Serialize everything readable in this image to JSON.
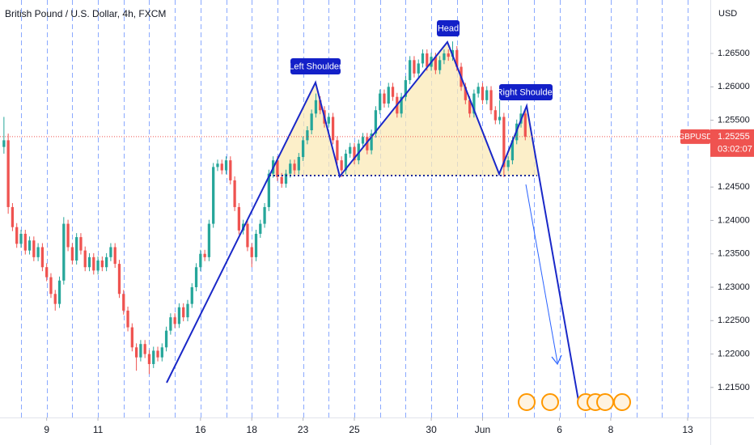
{
  "chart_data": {
    "type": "candlestick",
    "title": "British Pound / U.S. Dollar, 4h, FXCM",
    "currency": "USD",
    "up_color": "#26a69a",
    "down_color": "#ef5350",
    "xlim": [
      -4.92,
      161.3
    ],
    "ylim": [
      1.2105,
      1.273
    ],
    "xticks": [
      {
        "value": 6,
        "label": "9"
      },
      {
        "value": 18,
        "label": "11"
      },
      {
        "value": 42,
        "label": "16"
      },
      {
        "value": 54,
        "label": "18"
      },
      {
        "value": 66,
        "label": "23"
      },
      {
        "value": 78,
        "label": "25"
      },
      {
        "value": 96,
        "label": "30"
      },
      {
        "value": 108,
        "label": "Jun"
      },
      {
        "value": 126,
        "label": "6"
      },
      {
        "value": 138,
        "label": "8"
      },
      {
        "value": 156,
        "label": "13"
      }
    ],
    "xgrid": [
      0,
      6,
      12,
      18,
      24,
      30,
      36,
      42,
      48,
      54,
      60,
      66,
      72,
      78,
      84,
      90,
      96,
      102,
      108,
      114,
      120,
      126,
      132,
      138,
      144,
      150,
      156
    ],
    "yticks": [
      {
        "value": 1.215,
        "label": "1.21500"
      },
      {
        "value": 1.22,
        "label": "1.22000"
      },
      {
        "value": 1.225,
        "label": "1.22500"
      },
      {
        "value": 1.23,
        "label": "1.23000"
      },
      {
        "value": 1.235,
        "label": "1.23500"
      },
      {
        "value": 1.24,
        "label": "1.24000"
      },
      {
        "value": 1.245,
        "label": "1.24500"
      },
      {
        "value": 1.25,
        "label": "1.25000"
      },
      {
        "value": 1.255,
        "label": "1.25500"
      },
      {
        "value": 1.26,
        "label": "1.26000"
      },
      {
        "value": 1.265,
        "label": "1.26500"
      }
    ],
    "last_price": {
      "symbol": "GBPUSD",
      "value": 1.25255,
      "countdown": "03:02:07",
      "color": "#ef5350"
    },
    "annotations": [
      "Left Shoulder",
      "Head",
      "Right Shoulder"
    ],
    "x": [
      -4,
      -3,
      -2,
      -1,
      0,
      1,
      2,
      3,
      4,
      5,
      6,
      7,
      8,
      9,
      10,
      11,
      12,
      13,
      14,
      15,
      16,
      17,
      18,
      19,
      20,
      21,
      22,
      23,
      24,
      25,
      26,
      27,
      28,
      29,
      30,
      31,
      32,
      33,
      34,
      35,
      36,
      37,
      38,
      39,
      40,
      41,
      42,
      43,
      44,
      45,
      46,
      47,
      48,
      49,
      50,
      51,
      52,
      53,
      54,
      55,
      56,
      57,
      58,
      59,
      60,
      61,
      62,
      63,
      64,
      65,
      66,
      67,
      68,
      69,
      70,
      71,
      72,
      73,
      74,
      75,
      76,
      77,
      78,
      79,
      80,
      81,
      82,
      83,
      84,
      85,
      86,
      87,
      88,
      89,
      90,
      91,
      92,
      93,
      94,
      95,
      96,
      97,
      98,
      99,
      100,
      101,
      102,
      103,
      104,
      105,
      106,
      107,
      108,
      109,
      110,
      111,
      112,
      113,
      114,
      115,
      116,
      117,
      118
    ],
    "open": [
      1.251,
      1.252,
      1.242,
      1.239,
      1.2365,
      1.238,
      1.2355,
      1.237,
      1.2345,
      1.236,
      1.233,
      1.2315,
      1.229,
      1.2275,
      1.231,
      1.2395,
      1.236,
      1.234,
      1.2375,
      1.2355,
      1.233,
      1.2345,
      1.2325,
      1.234,
      1.233,
      1.2345,
      1.236,
      1.2335,
      1.229,
      1.2265,
      1.224,
      1.221,
      1.2195,
      1.2215,
      1.22,
      1.2185,
      1.2205,
      1.2195,
      1.221,
      1.2235,
      1.2255,
      1.2245,
      1.227,
      1.2255,
      1.2275,
      1.23,
      1.233,
      1.235,
      1.2345,
      1.2395,
      1.248,
      1.2485,
      1.2475,
      1.249,
      1.246,
      1.242,
      1.2385,
      1.2395,
      1.236,
      1.2345,
      1.238,
      1.2395,
      1.242,
      1.247,
      1.249,
      1.2465,
      1.2455,
      1.247,
      1.2485,
      1.2475,
      1.2495,
      1.252,
      1.2535,
      1.256,
      1.258,
      1.2565,
      1.2545,
      1.2555,
      1.252,
      1.249,
      1.2475,
      1.25,
      1.251,
      1.249,
      1.2515,
      1.2525,
      1.2505,
      1.253,
      1.2565,
      1.259,
      1.2575,
      1.26,
      1.2585,
      1.256,
      1.2585,
      1.261,
      1.264,
      1.262,
      1.2635,
      1.265,
      1.263,
      1.2645,
      1.2625,
      1.264,
      1.265,
      1.2645,
      1.2655,
      1.263,
      1.26,
      1.258,
      1.256,
      1.259,
      1.26,
      1.258,
      1.2595,
      1.2565,
      1.255,
      1.2555,
      1.248,
      1.249,
      1.252,
      1.2545,
      1.256
    ],
    "high": [
      1.2555,
      1.253,
      1.2426,
      1.2396,
      1.2386,
      1.2386,
      1.2376,
      1.2376,
      1.2366,
      1.2366,
      1.2336,
      1.2321,
      1.2296,
      1.2316,
      1.2405,
      1.2401,
      1.2366,
      1.2381,
      1.2381,
      1.2361,
      1.2351,
      1.2351,
      1.2346,
      1.2346,
      1.2351,
      1.2366,
      1.2366,
      1.2341,
      1.2296,
      1.2271,
      1.2246,
      1.2216,
      1.2221,
      1.2221,
      1.2206,
      1.2211,
      1.2211,
      1.2216,
      1.2241,
      1.2261,
      1.2261,
      1.2276,
      1.2276,
      1.2281,
      1.2306,
      1.2336,
      1.2356,
      1.2356,
      1.2401,
      1.2486,
      1.2491,
      1.2491,
      1.2496,
      1.2496,
      1.2466,
      1.2426,
      1.2401,
      1.2401,
      1.2366,
      1.2386,
      1.2401,
      1.2426,
      1.2476,
      1.2496,
      1.2496,
      1.2471,
      1.2476,
      1.2491,
      1.2491,
      1.2501,
      1.2526,
      1.2541,
      1.2566,
      1.259,
      1.2586,
      1.2571,
      1.2561,
      1.2561,
      1.2526,
      1.2496,
      1.2506,
      1.2516,
      1.2516,
      1.2521,
      1.2531,
      1.2531,
      1.2536,
      1.2571,
      1.2596,
      1.2596,
      1.2606,
      1.2606,
      1.2591,
      1.2591,
      1.2616,
      1.2646,
      1.2646,
      1.2641,
      1.2656,
      1.2656,
      1.2651,
      1.2651,
      1.2646,
      1.2656,
      1.2656,
      1.2668,
      1.2661,
      1.2636,
      1.2606,
      1.2586,
      1.2596,
      1.2606,
      1.2606,
      1.2601,
      1.2601,
      1.2571,
      1.258,
      1.2561,
      1.2496,
      1.2526,
      1.2551,
      1.2572,
      1.2566
    ],
    "low": [
      1.25,
      1.241,
      1.2384,
      1.2359,
      1.2359,
      1.2349,
      1.2349,
      1.2339,
      1.2339,
      1.2324,
      1.2309,
      1.2284,
      1.2265,
      1.2269,
      1.2304,
      1.2354,
      1.2334,
      1.2334,
      1.2349,
      1.2324,
      1.2324,
      1.2319,
      1.2319,
      1.2324,
      1.2324,
      1.2339,
      1.2329,
      1.2284,
      1.2259,
      1.2234,
      1.2204,
      1.2175,
      1.2189,
      1.2194,
      1.217,
      1.2179,
      1.2189,
      1.2189,
      1.2204,
      1.2229,
      1.2239,
      1.2239,
      1.2249,
      1.2249,
      1.2269,
      1.2294,
      1.2324,
      1.2339,
      1.2339,
      1.2389,
      1.2474,
      1.2469,
      1.2469,
      1.2454,
      1.2414,
      1.2379,
      1.2379,
      1.2354,
      1.233,
      1.2339,
      1.2374,
      1.2389,
      1.2414,
      1.2464,
      1.2459,
      1.2449,
      1.2449,
      1.2464,
      1.2469,
      1.2469,
      1.2489,
      1.2514,
      1.2529,
      1.2554,
      1.2559,
      1.2539,
      1.2539,
      1.2514,
      1.2484,
      1.2465,
      1.2469,
      1.2494,
      1.2484,
      1.2484,
      1.2509,
      1.2499,
      1.2499,
      1.2524,
      1.2559,
      1.2569,
      1.2569,
      1.2579,
      1.2554,
      1.2554,
      1.2579,
      1.2604,
      1.2614,
      1.2614,
      1.2629,
      1.2624,
      1.2624,
      1.2619,
      1.2619,
      1.2634,
      1.2639,
      1.2639,
      1.2624,
      1.2594,
      1.2574,
      1.2554,
      1.2554,
      1.2584,
      1.2574,
      1.2574,
      1.2559,
      1.2544,
      1.2544,
      1.2465,
      1.2474,
      1.2484,
      1.2514,
      1.2539,
      1.252
    ],
    "close": [
      1.252,
      1.242,
      1.239,
      1.2365,
      1.238,
      1.2355,
      1.237,
      1.2345,
      1.236,
      1.233,
      1.2315,
      1.229,
      1.2275,
      1.231,
      1.2395,
      1.236,
      1.234,
      1.2375,
      1.2355,
      1.233,
      1.2345,
      1.2325,
      1.234,
      1.233,
      1.2345,
      1.236,
      1.2335,
      1.229,
      1.2265,
      1.224,
      1.221,
      1.2195,
      1.2215,
      1.22,
      1.2185,
      1.2205,
      1.2195,
      1.221,
      1.2235,
      1.2255,
      1.2245,
      1.227,
      1.2255,
      1.2275,
      1.23,
      1.233,
      1.235,
      1.2345,
      1.2395,
      1.248,
      1.2485,
      1.2475,
      1.249,
      1.246,
      1.242,
      1.2385,
      1.2395,
      1.236,
      1.2345,
      1.238,
      1.2395,
      1.242,
      1.247,
      1.249,
      1.2465,
      1.2455,
      1.247,
      1.2485,
      1.2475,
      1.2495,
      1.252,
      1.2535,
      1.256,
      1.258,
      1.2565,
      1.2545,
      1.2555,
      1.252,
      1.249,
      1.2475,
      1.25,
      1.251,
      1.249,
      1.2515,
      1.2525,
      1.2505,
      1.253,
      1.2565,
      1.259,
      1.2575,
      1.26,
      1.2585,
      1.256,
      1.2585,
      1.261,
      1.264,
      1.262,
      1.2635,
      1.265,
      1.263,
      1.2645,
      1.2625,
      1.264,
      1.265,
      1.2645,
      1.2655,
      1.263,
      1.26,
      1.258,
      1.256,
      1.259,
      1.26,
      1.258,
      1.2595,
      1.2565,
      1.255,
      1.2555,
      1.248,
      1.249,
      1.252,
      1.2545,
      1.256,
      1.25255
    ]
  }
}
